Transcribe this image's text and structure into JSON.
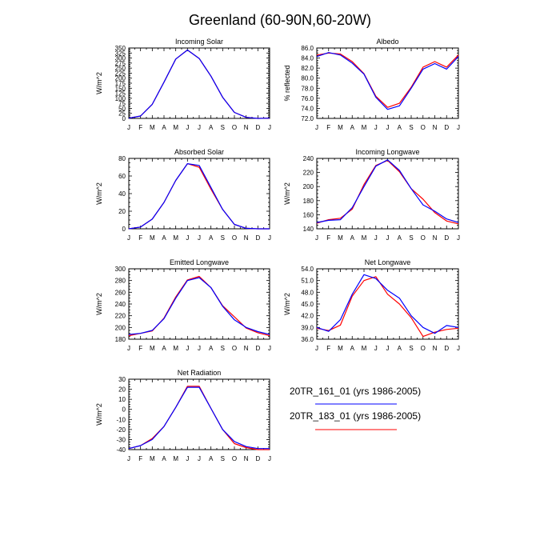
{
  "figure": {
    "title": "Greenland (60-90N,60-20W)"
  },
  "colors": {
    "series_a": "#0000ff",
    "series_b": "#ff0000"
  },
  "legend": [
    {
      "label": "20TR_161_01 (yrs 1986-2005)"
    },
    {
      "label": "20TR_183_01 (yrs 1986-2005)"
    }
  ],
  "chart_data": [
    {
      "type": "line",
      "title": "Incoming Solar",
      "ylabel": "W/m^2",
      "categories": [
        "J",
        "F",
        "M",
        "A",
        "M",
        "J",
        "J",
        "A",
        "S",
        "O",
        "N",
        "D",
        "J"
      ],
      "ylim": [
        0,
        350
      ],
      "yticks": [
        0,
        25,
        50,
        75,
        100,
        125,
        150,
        175,
        200,
        225,
        250,
        275,
        300,
        325,
        350
      ],
      "yticklabels": [
        "0",
        "25",
        "50",
        "75",
        "100",
        "125",
        "150",
        "175",
        "200",
        "225",
        "250",
        "275",
        "300",
        "325",
        "350"
      ],
      "series": [
        {
          "values": [
            1,
            12,
            70,
            180,
            295,
            340,
            298,
            210,
            105,
            30,
            5,
            0,
            1
          ]
        },
        {
          "values": [
            1,
            12,
            70,
            180,
            295,
            340,
            298,
            210,
            105,
            30,
            5,
            0,
            1
          ]
        }
      ]
    },
    {
      "type": "line",
      "title": "Albedo",
      "ylabel": "% reflected",
      "categories": [
        "J",
        "F",
        "M",
        "A",
        "M",
        "J",
        "J",
        "A",
        "S",
        "O",
        "N",
        "D",
        "J"
      ],
      "ylim": [
        72,
        86
      ],
      "yticks": [
        72,
        74,
        76,
        78,
        80,
        82,
        84,
        86
      ],
      "yticklabels": [
        "72.0",
        "74.0",
        "76.0",
        "78.0",
        "80.0",
        "82.0",
        "84.0",
        "86.0"
      ],
      "series": [
        {
          "values": [
            84.3,
            85.1,
            84.6,
            83.0,
            80.8,
            76.2,
            73.8,
            74.5,
            78.0,
            81.8,
            82.9,
            81.8,
            84.3
          ]
        },
        {
          "values": [
            84.6,
            85.0,
            84.8,
            83.3,
            80.9,
            76.4,
            74.2,
            75.0,
            78.2,
            82.2,
            83.3,
            82.2,
            84.6
          ]
        }
      ]
    },
    {
      "type": "line",
      "title": "Absorbed Solar",
      "ylabel": "W/m^2",
      "categories": [
        "J",
        "F",
        "M",
        "A",
        "M",
        "J",
        "J",
        "A",
        "S",
        "O",
        "N",
        "D",
        "J"
      ],
      "ylim": [
        0,
        80
      ],
      "yticks": [
        0,
        20,
        40,
        60,
        80
      ],
      "yticklabels": [
        "0",
        "20",
        "40",
        "60",
        "80"
      ],
      "series": [
        {
          "values": [
            0,
            2,
            11,
            30,
            55,
            74,
            72,
            47,
            22,
            5,
            0.5,
            0,
            0
          ]
        },
        {
          "values": [
            0,
            2,
            11,
            30,
            55,
            74,
            70,
            45,
            22,
            5,
            0.5,
            0,
            0
          ]
        }
      ]
    },
    {
      "type": "line",
      "title": "Incoming Longwave",
      "ylabel": "W/m^2",
      "categories": [
        "J",
        "F",
        "M",
        "A",
        "M",
        "J",
        "J",
        "A",
        "S",
        "O",
        "N",
        "D",
        "J"
      ],
      "ylim": [
        140,
        240
      ],
      "yticks": [
        140,
        160,
        180,
        200,
        220,
        240
      ],
      "yticklabels": [
        "140",
        "160",
        "180",
        "200",
        "220",
        "240"
      ],
      "series": [
        {
          "values": [
            149,
            152,
            153,
            170,
            200,
            229,
            238,
            223,
            197,
            174,
            165,
            154,
            149
          ]
        },
        {
          "values": [
            148,
            153,
            155,
            168,
            203,
            230,
            237,
            221,
            197,
            182,
            163,
            151,
            147
          ]
        }
      ]
    },
    {
      "type": "line",
      "title": "Emitted Longwave",
      "ylabel": "W/m^2",
      "categories": [
        "J",
        "F",
        "M",
        "A",
        "M",
        "J",
        "J",
        "A",
        "S",
        "O",
        "N",
        "D",
        "J"
      ],
      "ylim": [
        180,
        300
      ],
      "yticks": [
        180,
        200,
        220,
        240,
        260,
        280,
        300
      ],
      "yticklabels": [
        "180",
        "200",
        "220",
        "240",
        "260",
        "280",
        "300"
      ],
      "series": [
        {
          "values": [
            188,
            190,
            195,
            215,
            250,
            280,
            285,
            268,
            236,
            213,
            200,
            193,
            188
          ]
        },
        {
          "values": [
            186,
            190,
            194,
            216,
            252,
            281,
            287,
            268,
            237,
            218,
            199,
            191,
            186
          ]
        }
      ]
    },
    {
      "type": "line",
      "title": "Net Longwave",
      "ylabel": "W/m^2",
      "categories": [
        "J",
        "F",
        "M",
        "A",
        "M",
        "J",
        "J",
        "A",
        "S",
        "O",
        "N",
        "D",
        "J"
      ],
      "ylim": [
        36,
        54
      ],
      "yticks": [
        36,
        39,
        42,
        45,
        48,
        51,
        54
      ],
      "yticklabels": [
        "36.0",
        "39.0",
        "42.0",
        "45.0",
        "48.0",
        "51.0",
        "54.0"
      ],
      "series": [
        {
          "values": [
            39.0,
            38.0,
            41.0,
            47.5,
            52.5,
            51.5,
            48.5,
            46.5,
            42.0,
            39.0,
            37.5,
            39.5,
            39.0
          ]
        },
        {
          "values": [
            38.8,
            38.2,
            39.6,
            47.0,
            51.0,
            52.0,
            47.5,
            45.0,
            41.5,
            36.7,
            37.8,
            38.5,
            38.8
          ]
        }
      ]
    },
    {
      "type": "line",
      "title": "Net Radiation",
      "ylabel": "W/m^2",
      "categories": [
        "J",
        "F",
        "M",
        "A",
        "M",
        "J",
        "J",
        "A",
        "S",
        "O",
        "N",
        "D",
        "J"
      ],
      "ylim": [
        -40,
        30
      ],
      "yticks": [
        -40,
        -30,
        -20,
        -10,
        0,
        10,
        20,
        30
      ],
      "yticklabels": [
        "-40",
        "-30",
        "-20",
        "-10",
        "0",
        "10",
        "20",
        "30"
      ],
      "series": [
        {
          "values": [
            -39,
            -36,
            -30,
            -17,
            2,
            22,
            22,
            1,
            -20,
            -32,
            -37,
            -39,
            -39
          ]
        },
        {
          "values": [
            -39,
            -36,
            -29,
            -17,
            2,
            23,
            23,
            1,
            -20,
            -34,
            -38,
            -40,
            -40
          ]
        }
      ]
    }
  ]
}
